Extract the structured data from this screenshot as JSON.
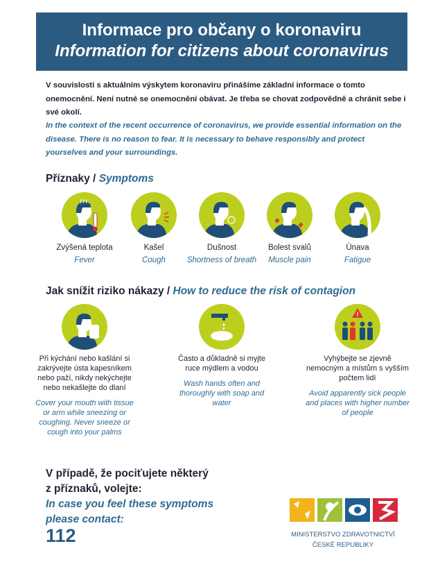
{
  "header": {
    "title_cz": "Informace pro občany o koronaviru",
    "title_en": "Information for citizens about coronavirus"
  },
  "intro": {
    "cz": "V souvislosti s aktuálním výskytem koronaviru přinášíme základní informace o tomto onemocnění. Není nutné se onemocnění obávat. Je třeba se chovat zodpovědně a chránit sebe i své okolí.",
    "en": "In the context of the recent occurrence of coronavirus, we provide essential information on the disease. There is no reason to fear. It is necessary to behave responsibly and protect yourselves and your surroundings."
  },
  "symptoms": {
    "heading_cz": "Příznaky /",
    "heading_en": "Symptoms",
    "items": [
      {
        "cz": "Zvýšená teplota",
        "en": "Fever",
        "icon": "fever-icon"
      },
      {
        "cz": "Kašel",
        "en": "Cough",
        "icon": "cough-icon"
      },
      {
        "cz": "Dušnost",
        "en": "Shortness of breath",
        "icon": "shortness-of-breath-icon"
      },
      {
        "cz": "Bolest svalů",
        "en": "Muscle pain",
        "icon": "muscle-pain-icon"
      },
      {
        "cz": "Únava",
        "en": "Fatigue",
        "icon": "fatigue-icon"
      }
    ]
  },
  "prevention": {
    "heading_cz": "Jak snížit riziko nákazy /",
    "heading_en": "How to reduce the risk of contagion",
    "items": [
      {
        "cz": "Při kýchání nebo kašlání si zakrývejte ústa kapesníkem nebo paží, nikdy nekýchejte nebo nekašlejte do dlaní",
        "en": "Cover your mouth with tissue or arm while sneezing or coughing. Never sneeze or cough into your palms",
        "icon": "sneeze-into-tissue-icon"
      },
      {
        "cz": "Často a důkladně si myjte ruce mýdlem a vodou",
        "en": "Wash hands often and thoroughly with soap and water",
        "icon": "hand-washing-icon"
      },
      {
        "cz": "Vyhýbejte se zjevně nemocným a místům s vyšším počtem lidí",
        "en": "Avoid apparently sick people and places with higher number of people",
        "icon": "crowd-warning-icon"
      }
    ]
  },
  "contact": {
    "cz": "V případě, že pociťujete některý z příznaků, volejte:",
    "en": "In case you feel these symptoms please contact:",
    "number": "112"
  },
  "logo": {
    "line1": "MINISTERSTVO ZDRAVOTNICTVÍ",
    "line2": "ČESKÉ REPUBLIKY"
  },
  "colors": {
    "header": "#2c5b82",
    "accent_blue": "#2f6a92",
    "icon_green": "#bccf1f",
    "figure_navy": "#1f4e79"
  }
}
